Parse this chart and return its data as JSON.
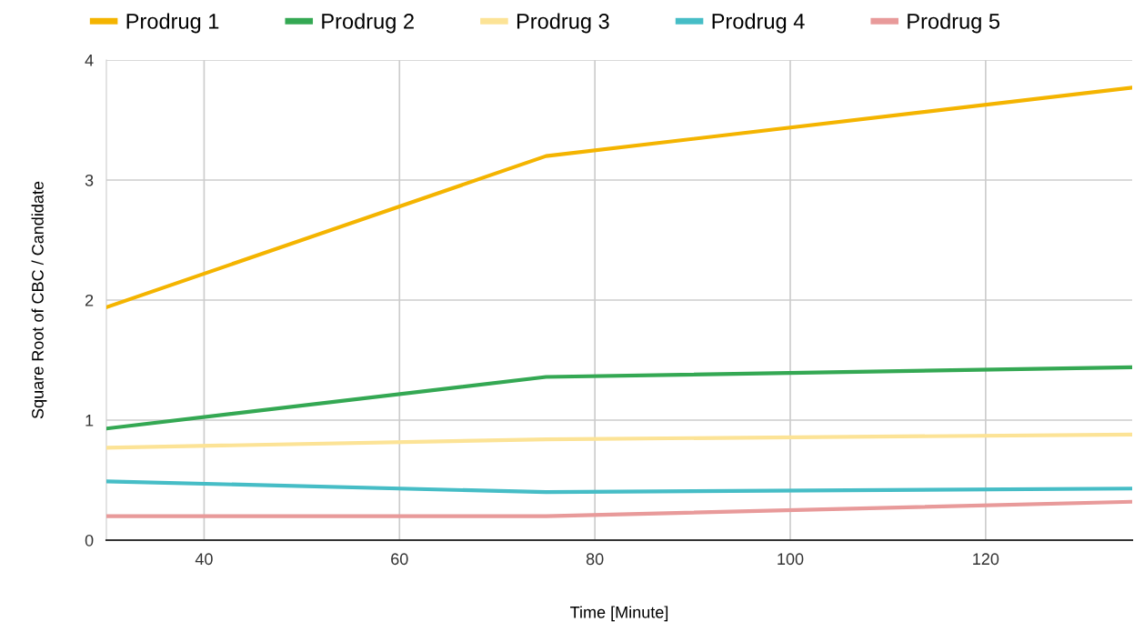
{
  "chart_data": {
    "type": "line",
    "xlabel": "Time [Minute]",
    "ylabel": "Square Root of CBC / Candidate",
    "x": [
      30,
      75,
      135
    ],
    "series": [
      {
        "name": "Prodrug 1",
        "color": "#f4b400",
        "values": [
          1.94,
          3.2,
          3.77
        ]
      },
      {
        "name": "Prodrug 2",
        "color": "#34a853",
        "values": [
          0.93,
          1.36,
          1.44
        ]
      },
      {
        "name": "Prodrug 3",
        "color": "#fce396",
        "values": [
          0.77,
          0.84,
          0.88
        ]
      },
      {
        "name": "Prodrug 4",
        "color": "#46bdc6",
        "values": [
          0.49,
          0.4,
          0.43
        ]
      },
      {
        "name": "Prodrug 5",
        "color": "#e89a9a",
        "values": [
          0.2,
          0.2,
          0.32
        ]
      }
    ],
    "xlim": [
      30,
      135
    ],
    "xticks": [
      40,
      60,
      80,
      100,
      120
    ],
    "ylim": [
      0,
      4
    ],
    "yticks": [
      0,
      1,
      2,
      3,
      4
    ],
    "grid": true,
    "legend": "top",
    "marker": "none",
    "line_style": "solid"
  }
}
